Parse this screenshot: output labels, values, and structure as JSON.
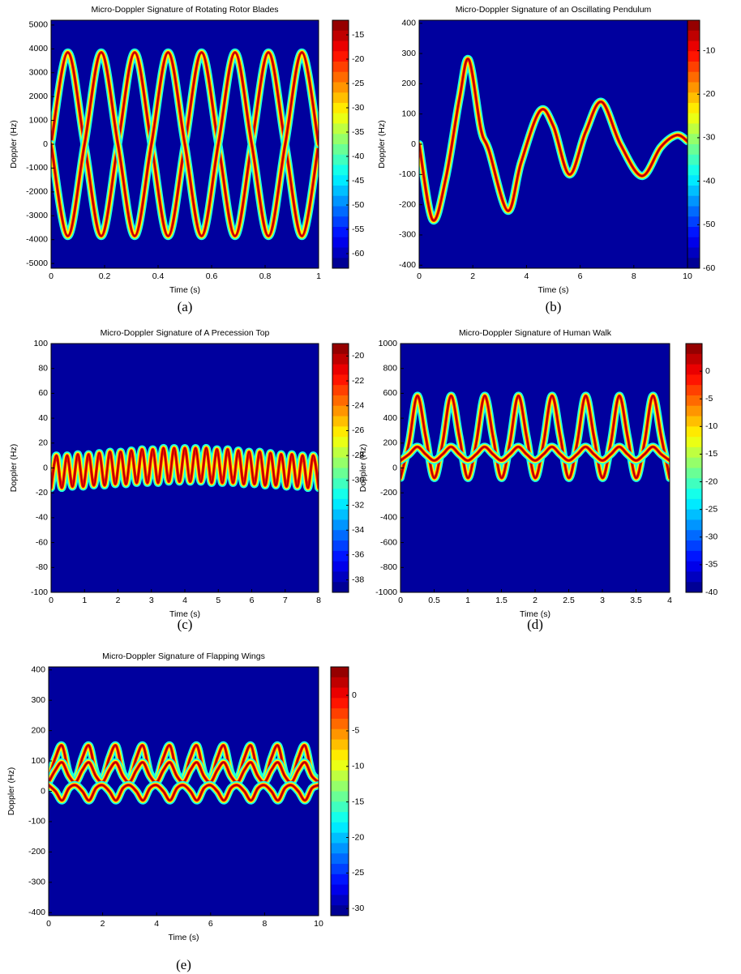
{
  "chart_data": [
    {
      "type": "spectrogram",
      "title": "Micro-Doppler Signature of Rotating Rotor Blades",
      "x_label": "Time (s)",
      "y_label": "Doppler (Hz)",
      "caption": "(a)",
      "colormap": "jet",
      "xlim": [
        0,
        1
      ],
      "xticks": [
        0,
        0.2,
        0.4,
        0.6,
        0.8,
        1
      ],
      "ylim": [
        -5200,
        5200
      ],
      "yticks": [
        -5000,
        -4000,
        -3000,
        -2000,
        -1000,
        0,
        1000,
        2000,
        3000,
        4000,
        5000
      ],
      "clim": [
        -63,
        -12
      ],
      "cticks": [
        -15,
        -20,
        -25,
        -30,
        -35,
        -40,
        -45,
        -50,
        -55,
        -60
      ],
      "x": [
        0,
        0.0625,
        0.125,
        0.1875,
        0.25,
        0.3125,
        0.375,
        0.4375,
        0.5,
        0.5625,
        0.625,
        0.6875,
        0.75,
        0.8125,
        0.875,
        0.9375,
        1
      ],
      "series": [
        {
          "values": [
            0,
            3850,
            0,
            -3850,
            0,
            3850,
            0,
            -3850,
            0,
            3850,
            0,
            -3850,
            0,
            3850,
            0,
            -3850,
            0
          ]
        },
        {
          "values": [
            0,
            -3850,
            0,
            3850,
            0,
            -3850,
            0,
            3850,
            0,
            -3850,
            0,
            3850,
            0,
            -3850,
            0,
            3850,
            0
          ]
        }
      ]
    },
    {
      "type": "spectrogram",
      "title": "Micro-Doppler Signature of an Oscillating Pendulum",
      "x_label": "Time (s)",
      "y_label": "Doppler (Hz)",
      "caption": "(b)",
      "colormap": "jet",
      "xlim": [
        0,
        10
      ],
      "xticks": [
        0,
        2,
        4,
        6,
        8,
        10
      ],
      "ylim": [
        -410,
        410
      ],
      "yticks": [
        -400,
        -300,
        -200,
        -100,
        0,
        100,
        200,
        300,
        400
      ],
      "clim": [
        -60,
        -3
      ],
      "cticks": [
        -10,
        -20,
        -30,
        -40,
        -50,
        -60
      ],
      "x": [
        0,
        0.5,
        1,
        1.5,
        1.85,
        2.3,
        2.6,
        3.3,
        3.8,
        4.5,
        5,
        5.6,
        6.2,
        6.8,
        7.5,
        8.3,
        9,
        9.6,
        10
      ],
      "series": [
        {
          "values": [
            0,
            -250,
            -110,
            150,
            280,
            50,
            -20,
            -220,
            -60,
            110,
            60,
            -100,
            40,
            140,
            0,
            -105,
            -10,
            30,
            10
          ]
        }
      ]
    },
    {
      "type": "spectrogram",
      "title": "Micro-Doppler Signature of A Precession Top",
      "x_label": "Time (s)",
      "y_label": "Doppler (Hz)",
      "caption": "(c)",
      "colormap": "jet",
      "xlim": [
        0,
        8
      ],
      "xticks": [
        0,
        1,
        2,
        3,
        4,
        5,
        6,
        7,
        8
      ],
      "ylim": [
        -100,
        100
      ],
      "yticks": [
        -100,
        -80,
        -60,
        -40,
        -20,
        0,
        20,
        40,
        60,
        80,
        100
      ],
      "clim": [
        -39,
        -19
      ],
      "cticks": [
        -20,
        -22,
        -24,
        -26,
        -28,
        -30,
        -32,
        -34,
        -36,
        -38
      ],
      "x": [
        0,
        0.16,
        0.32,
        0.48,
        0.64,
        0.8,
        0.96,
        1.12,
        1.28,
        1.44,
        1.6,
        1.76,
        1.92,
        2.08,
        2.24,
        2.4,
        2.56,
        2.72,
        2.88,
        3.04,
        3.2,
        3.36,
        3.52,
        3.68,
        3.84,
        4,
        4.16,
        4.32,
        4.48,
        4.64,
        4.8,
        4.96,
        5.12,
        5.28,
        5.44,
        5.6,
        5.76,
        5.92,
        6.08,
        6.24,
        6.4,
        6.56,
        6.72,
        6.88,
        7.04,
        7.2,
        7.36,
        7.52,
        7.68,
        7.84,
        8
      ],
      "series": [
        {
          "values": [
            -16,
            10,
            -16,
            10,
            -15,
            11,
            -15,
            11,
            -14,
            12,
            -14,
            13,
            -13,
            13,
            -13,
            14,
            -12,
            15,
            -12,
            15,
            -12,
            16,
            -11,
            16,
            -11,
            16,
            -11,
            16,
            -11,
            16,
            -12,
            15,
            -12,
            15,
            -12,
            14,
            -13,
            13,
            -13,
            13,
            -14,
            12,
            -14,
            11,
            -15,
            11,
            -15,
            10,
            -16,
            10,
            -16
          ]
        }
      ]
    },
    {
      "type": "spectrogram",
      "title": "Micro-Doppler Signature of Human Walk",
      "x_label": "Time (s)",
      "y_label": "Doppler (Hz)",
      "caption": "(d)",
      "colormap": "jet",
      "xlim": [
        0,
        4
      ],
      "xticks": [
        0,
        0.5,
        1,
        1.5,
        2,
        2.5,
        3,
        3.5,
        4
      ],
      "ylim": [
        -1000,
        1000
      ],
      "yticks": [
        -1000,
        -800,
        -600,
        -400,
        -200,
        0,
        200,
        400,
        600,
        800,
        1000
      ],
      "clim": [
        -40,
        5
      ],
      "cticks": [
        0,
        -5,
        -10,
        -15,
        -20,
        -25,
        -30,
        -35,
        -40
      ],
      "x": [
        0,
        0.125,
        0.25,
        0.375,
        0.5,
        0.625,
        0.75,
        0.875,
        1,
        1.125,
        1.25,
        1.375,
        1.5,
        1.625,
        1.75,
        1.875,
        2,
        2.125,
        2.25,
        2.375,
        2.5,
        2.625,
        2.75,
        2.875,
        3,
        3.125,
        3.25,
        3.375,
        3.5,
        3.625,
        3.75,
        3.875,
        4
      ],
      "series": [
        {
          "values": [
            -80,
            200,
            580,
            250,
            -80,
            200,
            580,
            250,
            -80,
            200,
            580,
            250,
            -80,
            200,
            580,
            250,
            -80,
            200,
            580,
            250,
            -80,
            200,
            580,
            250,
            -80,
            200,
            580,
            250,
            -80,
            200,
            580,
            250,
            -80
          ]
        },
        {
          "values": [
            60,
            110,
            170,
            110,
            60,
            110,
            170,
            110,
            60,
            110,
            170,
            110,
            60,
            110,
            170,
            110,
            60,
            110,
            170,
            110,
            60,
            110,
            170,
            110,
            60,
            110,
            170,
            110,
            60,
            110,
            170,
            110,
            60
          ]
        }
      ]
    },
    {
      "type": "spectrogram",
      "title": "Micro-Doppler Signature of Flapping Wings",
      "x_label": "Time (s)",
      "y_label": "Doppler (Hz)",
      "caption": "(e)",
      "colormap": "jet",
      "xlim": [
        0,
        10
      ],
      "xticks": [
        0,
        2,
        4,
        6,
        8,
        10
      ],
      "ylim": [
        -410,
        410
      ],
      "yticks": [
        -400,
        -300,
        -200,
        -100,
        0,
        100,
        200,
        300,
        400
      ],
      "clim": [
        -31,
        4
      ],
      "cticks": [
        0,
        -5,
        -10,
        -15,
        -20,
        -25,
        -30
      ],
      "x": [
        0,
        0.25,
        0.5,
        0.75,
        1,
        1.25,
        1.5,
        1.75,
        2,
        2.25,
        2.5,
        2.75,
        3,
        3.25,
        3.5,
        3.75,
        4,
        4.25,
        4.5,
        4.75,
        5,
        5.25,
        5.5,
        5.75,
        6,
        6.25,
        6.5,
        6.75,
        7,
        7.25,
        7.5,
        7.75,
        8,
        8.25,
        8.5,
        8.75,
        9,
        9.25,
        9.5,
        9.75,
        10
      ],
      "series": [
        {
          "values": [
            40,
            110,
            150,
            60,
            40,
            110,
            150,
            60,
            40,
            110,
            150,
            60,
            40,
            110,
            150,
            60,
            40,
            110,
            150,
            60,
            40,
            110,
            150,
            60,
            40,
            110,
            150,
            60,
            40,
            110,
            150,
            60,
            40,
            110,
            150,
            60,
            40,
            110,
            150,
            60,
            40
          ]
        },
        {
          "values": [
            30,
            70,
            95,
            50,
            30,
            70,
            95,
            50,
            30,
            70,
            95,
            50,
            30,
            70,
            95,
            50,
            30,
            70,
            95,
            50,
            30,
            70,
            95,
            50,
            30,
            70,
            95,
            50,
            30,
            70,
            95,
            50,
            30,
            70,
            95,
            50,
            30,
            70,
            95,
            50,
            30
          ]
        },
        {
          "values": [
            20,
            0,
            -30,
            10,
            20,
            0,
            -30,
            10,
            20,
            0,
            -30,
            10,
            20,
            0,
            -30,
            10,
            20,
            0,
            -30,
            10,
            20,
            0,
            -30,
            10,
            20,
            0,
            -30,
            10,
            20,
            0,
            -30,
            10,
            20,
            0,
            -30,
            10,
            20,
            0,
            -30,
            10,
            20
          ]
        }
      ]
    }
  ]
}
